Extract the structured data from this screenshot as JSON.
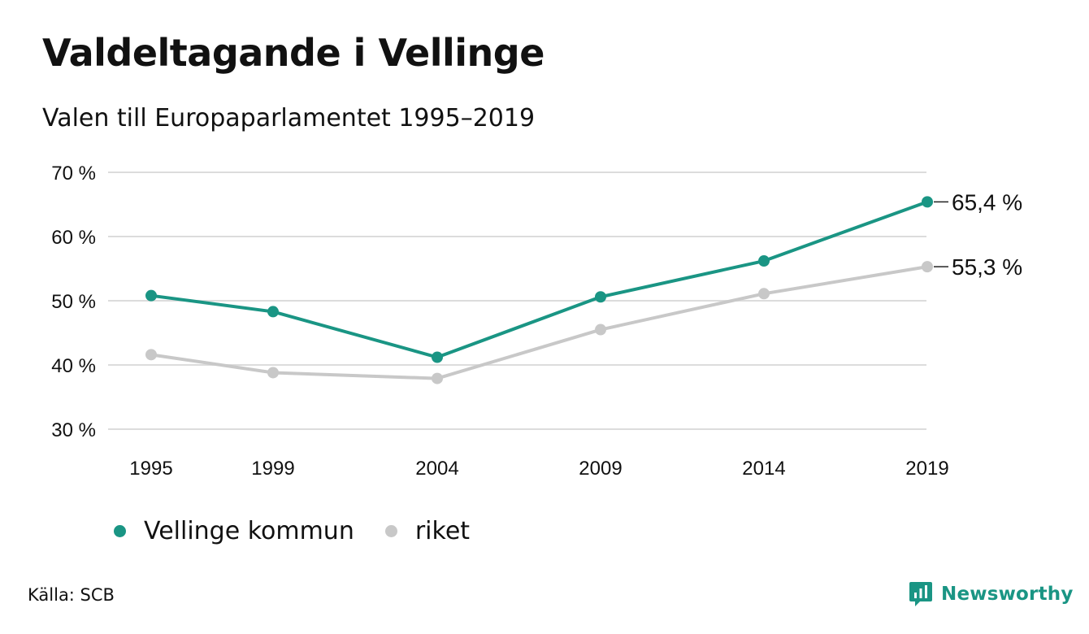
{
  "header": {
    "title": "Valdeltagande i Vellinge",
    "subtitle": "Valen till Europaparlamentet 1995–2019"
  },
  "chart_data": {
    "type": "line",
    "x": [
      "1995",
      "1999",
      "2004",
      "2009",
      "2014",
      "2019"
    ],
    "series": [
      {
        "name": "Vellinge kommun",
        "values": [
          50.8,
          48.3,
          41.2,
          50.6,
          56.2,
          65.4
        ],
        "color": "#1a9584",
        "end_label": "65,4 %"
      },
      {
        "name": "riket",
        "values": [
          41.6,
          38.8,
          37.9,
          45.5,
          51.1,
          55.3
        ],
        "color": "#c8c8c8",
        "end_label": "55,3 %"
      }
    ],
    "yticks": [
      30,
      40,
      50,
      60,
      70
    ],
    "ytick_labels": [
      "30 %",
      "40 %",
      "50 %",
      "60 %",
      "70 %"
    ],
    "ylim": [
      30,
      70
    ],
    "grid": true,
    "legend_position": "bottom-left"
  },
  "footer": {
    "source": "Källa: SCB",
    "brand": "Newsworthy",
    "brand_color": "#1a9584",
    "brand_icon": "newsworthy-logo-icon"
  }
}
